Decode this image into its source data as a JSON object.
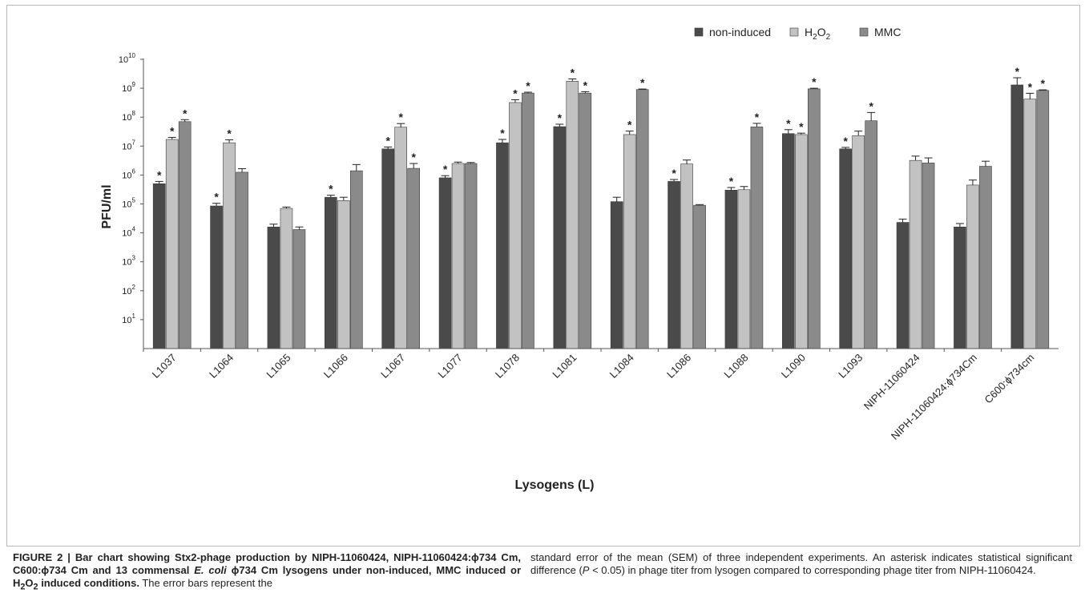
{
  "chart_data": {
    "type": "bar",
    "scale": "log10",
    "ylim": [
      1,
      10000000000
    ],
    "ylabel": "PFU/ml",
    "xlabel": "Lysogens (L)",
    "y_ticks": [
      {
        "value": 10,
        "base": "10",
        "exp": "1"
      },
      {
        "value": 100,
        "base": "10",
        "exp": "2"
      },
      {
        "value": 1000,
        "base": "10",
        "exp": "3"
      },
      {
        "value": 10000,
        "base": "10",
        "exp": "4"
      },
      {
        "value": 100000,
        "base": "10",
        "exp": "5"
      },
      {
        "value": 1000000,
        "base": "10",
        "exp": "6"
      },
      {
        "value": 10000000,
        "base": "10",
        "exp": "7"
      },
      {
        "value": 100000000,
        "base": "10",
        "exp": "8"
      },
      {
        "value": 1000000000,
        "base": "10",
        "exp": "9"
      },
      {
        "value": 10000000000,
        "base": "10",
        "exp": "10"
      }
    ],
    "categories": [
      "L1037",
      "L1064",
      "L1065",
      "L1066",
      "L1067",
      "L1077",
      "L1078",
      "L1081",
      "L1084",
      "L1086",
      "L1088",
      "L1090",
      "L1093",
      "NIPH-11060424",
      "NIPH-11060424:ϕ734Cm",
      "C600:ϕ734cm"
    ],
    "series": [
      {
        "name": "non-induced",
        "legend_main": "non-induced",
        "legend_sub1": "",
        "legend_mid": "",
        "legend_sub2": "",
        "color": "#4a4a4a",
        "values": [
          500000,
          85000,
          16000,
          170000,
          8000000,
          800000,
          13000000,
          47000000,
          120000,
          600000,
          300000,
          27000000,
          8000000,
          23000,
          16000,
          1300000000
        ],
        "errors": [
          100000,
          20000,
          4000,
          30000,
          1300000,
          150000,
          4000000,
          10000000,
          50000,
          100000,
          70000,
          10000000,
          1000000,
          7000,
          5000,
          1000000000
        ],
        "significant": [
          true,
          true,
          false,
          true,
          true,
          true,
          true,
          true,
          false,
          true,
          true,
          true,
          true,
          false,
          false,
          true
        ]
      },
      {
        "name": "H2O2",
        "legend_main": "H",
        "legend_sub1": "2",
        "legend_mid": "O",
        "legend_sub2": "2",
        "color": "#c2c2c2",
        "values": [
          17000000,
          13000000,
          70000,
          130000,
          45000000,
          2500000,
          320000000,
          1750000000,
          25000000,
          2400000,
          310000,
          25000000,
          23000000,
          3200000,
          450000,
          420000000
        ],
        "errors": [
          3000000,
          3500000,
          8000,
          40000,
          15000000,
          300000,
          80000000,
          350000000,
          8000000,
          900000,
          90000,
          3000000,
          10000000,
          1300000,
          220000,
          250000000
        ],
        "significant": [
          true,
          true,
          false,
          false,
          true,
          false,
          true,
          true,
          true,
          false,
          false,
          true,
          false,
          false,
          false,
          true
        ]
      },
      {
        "name": "MMC",
        "legend_main": "MMC",
        "legend_sub1": "",
        "legend_mid": "",
        "legend_sub2": "",
        "color": "#8a8a8a",
        "values": [
          70000000,
          1250000,
          13000,
          1400000,
          1700000,
          2500000,
          680000000,
          680000000,
          900000000,
          90000,
          46000000,
          950000000,
          75000000,
          2600000,
          2000000,
          840000000
        ],
        "errors": [
          12000000,
          400000,
          3000,
          900000,
          800000,
          200000,
          50000000,
          80000000,
          40000000,
          5000,
          15000000,
          50000000,
          70000000,
          1300000,
          1000000,
          40000000
        ],
        "significant": [
          true,
          false,
          false,
          false,
          true,
          false,
          true,
          true,
          true,
          false,
          true,
          true,
          true,
          false,
          false,
          true
        ]
      }
    ],
    "significance_marker": "*"
  },
  "caption": {
    "figure_label": "FIGURE 2 | ",
    "bold_1": "Bar chart showing Stx2-phage production by NIPH-11060424, NIPH-11060424:ϕ734 Cm, C600:ϕ734 Cm and 13 commensal ",
    "bold_italic": "E. coli",
    "bold_2": " ϕ734 Cm lysogens under non-induced, MMC induced or H",
    "bold_sub_a": "2",
    "bold_o": "O",
    "bold_sub_b": "2",
    "bold_3": " induced conditions.",
    "left_plain": " The error bars represent the",
    "right_1": "standard error of the mean (SEM) of three independent experiments. An asterisk indicates statistical significant difference (",
    "right_p": "P",
    "right_2": " < 0.05) in phage titer from lysogen compared to corresponding phage titer from NIPH-11060424."
  }
}
